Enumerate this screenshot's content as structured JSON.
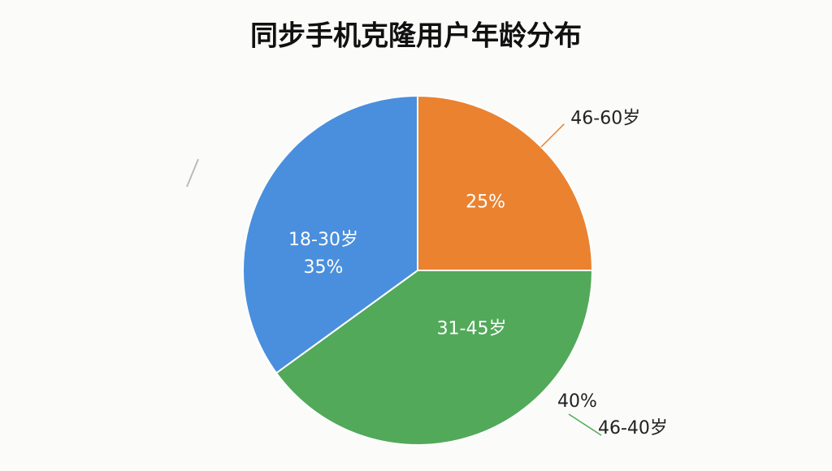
{
  "chart_data": {
    "type": "pie",
    "title": "同步手机克隆用户年龄分布",
    "categories": [
      "46-60岁",
      "31-45岁",
      "18-30岁"
    ],
    "values": [
      25,
      40,
      35
    ],
    "value_labels": [
      "25%",
      "40%",
      "35%"
    ],
    "colors": [
      "#ea8230",
      "#52a95a",
      "#4a8fdd"
    ],
    "annotations": [
      "46-40岁"
    ]
  }
}
